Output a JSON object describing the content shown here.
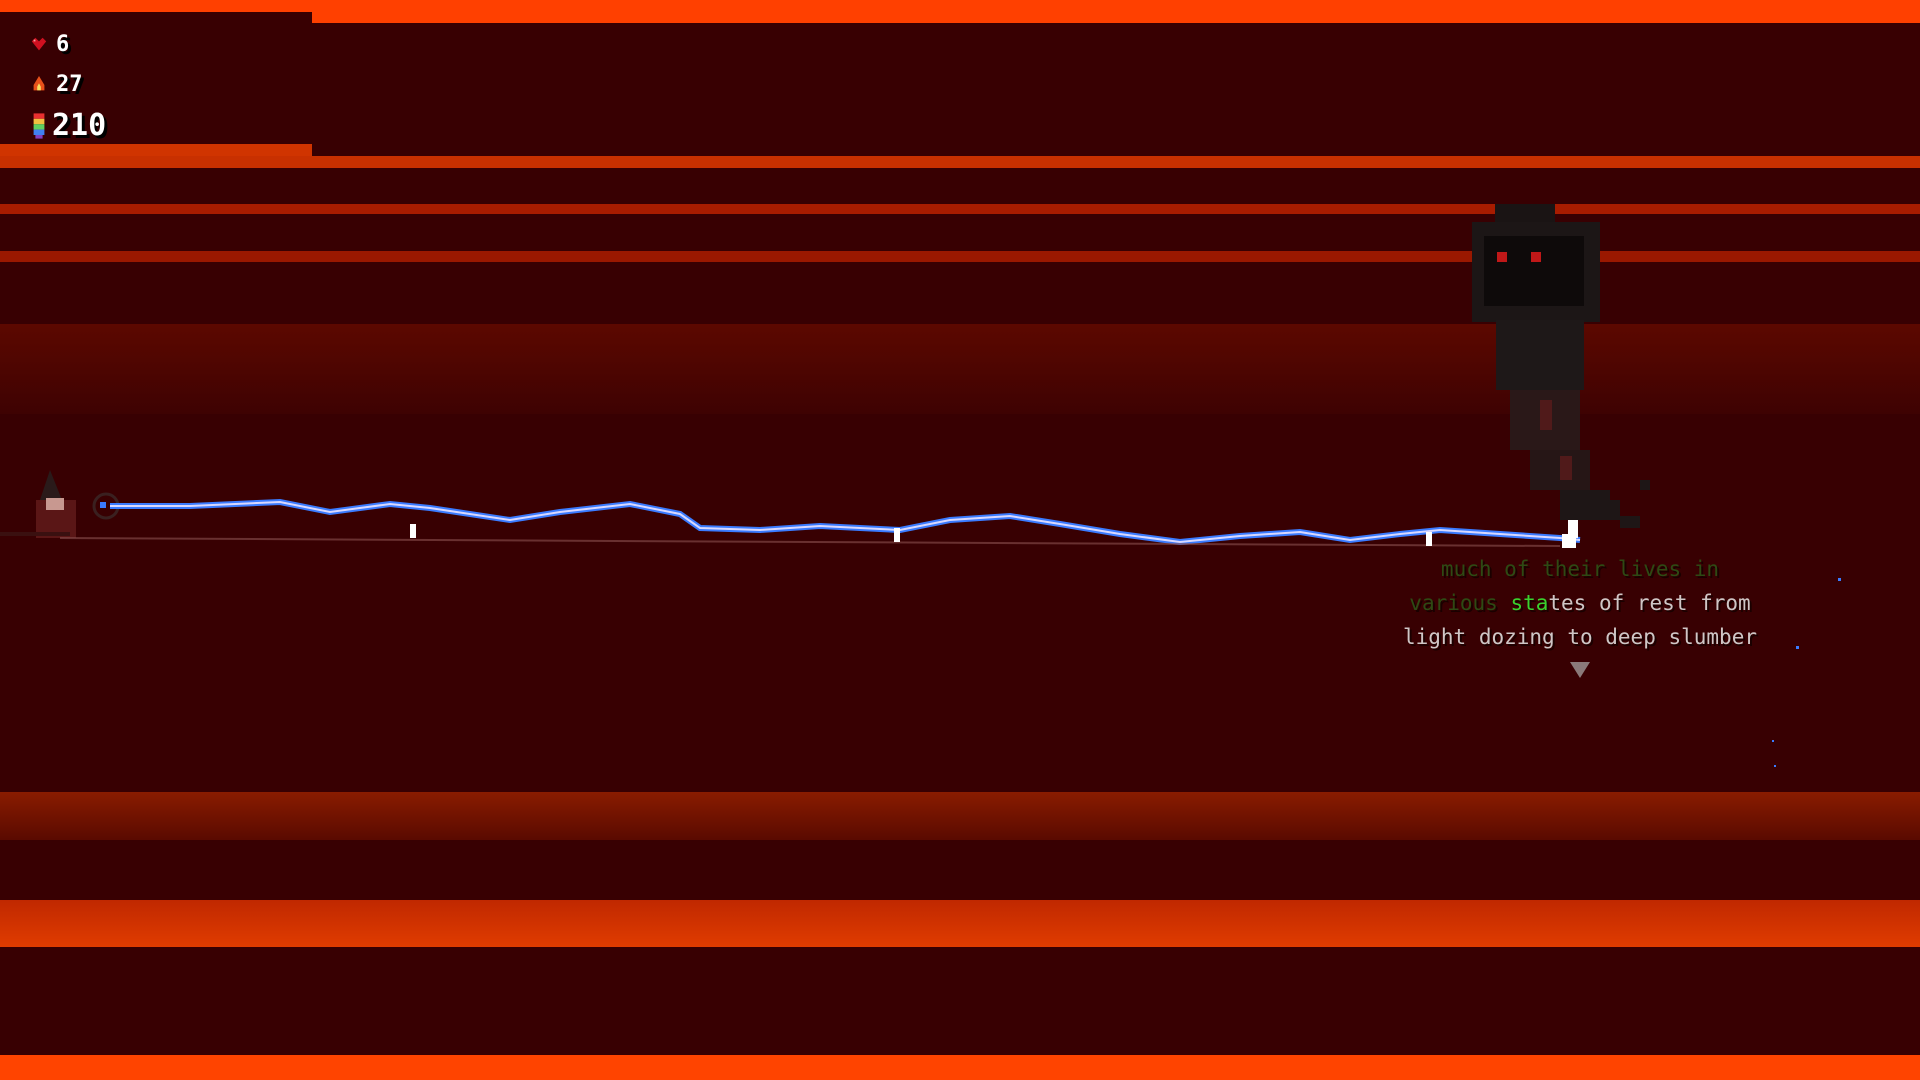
{
  "hud": {
    "health": {
      "icon": "heart-icon",
      "value": "6"
    },
    "fire": {
      "icon": "flame-icon",
      "value": "27"
    },
    "gems": {
      "icon": "rainbow-crystal-icon",
      "value": "210"
    }
  },
  "dialogue": {
    "line1": "much of their lives in",
    "line2_dim": "various ",
    "line2_highlight": "sta",
    "line2_rest": "tes of rest from",
    "line3": "light dozing to deep slumber",
    "continue_icon": "triangle-down-icon"
  },
  "colors": {
    "background": "#380002",
    "lava": "#ff4400",
    "lightning": "#3a7bff",
    "highlight": "#3ad22e"
  }
}
